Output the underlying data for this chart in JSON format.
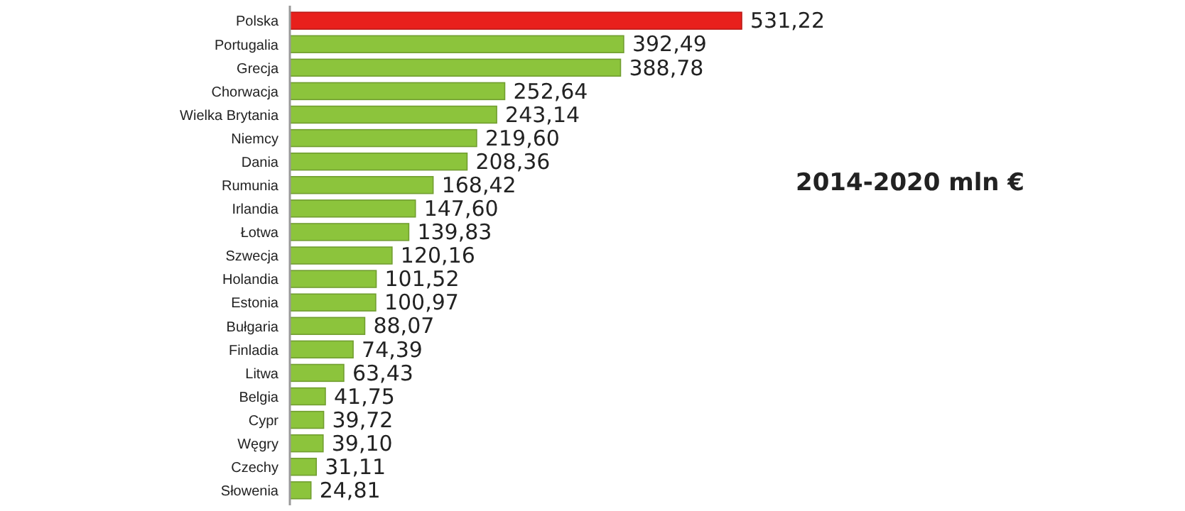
{
  "chart_data": {
    "type": "bar",
    "orientation": "horizontal",
    "title": "2014-2020 mln €",
    "categories": [
      "Polska",
      "Portugalia",
      "Grecja",
      "Chorwacja",
      "Wielka Brytania",
      "Niemcy",
      "Dania",
      "Rumunia",
      "Irlandia",
      "Łotwa",
      "Szwecja",
      "Holandia",
      "Estonia",
      "Bułgaria",
      "Finladia",
      "Litwa",
      "Belgia",
      "Cypr",
      "Węgry",
      "Czechy",
      "Słowenia"
    ],
    "values": [
      531.22,
      392.49,
      388.78,
      252.64,
      243.14,
      219.6,
      208.36,
      168.42,
      147.6,
      139.83,
      120.16,
      101.52,
      100.97,
      88.07,
      74.39,
      63.43,
      41.75,
      39.72,
      39.1,
      31.11,
      24.81
    ],
    "value_labels": [
      "531,22",
      "392,49",
      "388,78",
      "252,64",
      "243,14",
      "219,60",
      "208,36",
      "168,42",
      "147,60",
      "139,83",
      "120,16",
      "101,52",
      "100,97",
      "88,07",
      "74,39",
      "63,43",
      "41,75",
      "39,72",
      "39,10",
      "31,11",
      "24,81"
    ],
    "colors": [
      "#e8201c",
      "#8cc43c",
      "#8cc43c",
      "#8cc43c",
      "#8cc43c",
      "#8cc43c",
      "#8cc43c",
      "#8cc43c",
      "#8cc43c",
      "#8cc43c",
      "#8cc43c",
      "#8cc43c",
      "#8cc43c",
      "#8cc43c",
      "#8cc43c",
      "#8cc43c",
      "#8cc43c",
      "#8cc43c",
      "#8cc43c",
      "#8cc43c",
      "#8cc43c"
    ]
  }
}
